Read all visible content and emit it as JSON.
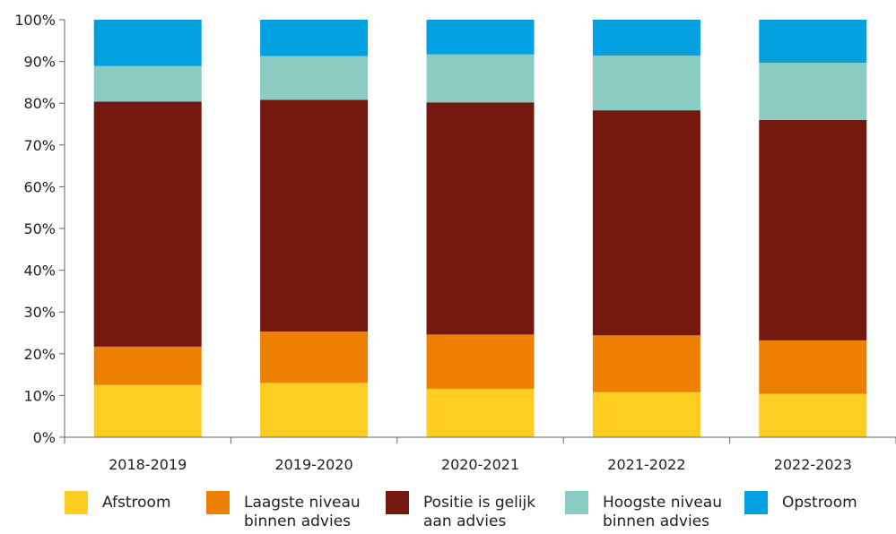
{
  "chart_data": {
    "type": "bar",
    "stacked": true,
    "categories": [
      "2018-2019",
      "2019-2020",
      "2020-2021",
      "2021-2022",
      "2022-2023"
    ],
    "series": [
      {
        "name": "Afstroom",
        "color": "#FDCD21",
        "values": [
          12.5,
          13.0,
          11.6,
          10.8,
          10.4
        ]
      },
      {
        "name": "Laagste niveau binnen advies",
        "color": "#EE8001",
        "values": [
          9.2,
          12.3,
          13.0,
          13.6,
          12.8
        ]
      },
      {
        "name": "Positie is gelijk aan advies",
        "color": "#741810",
        "values": [
          58.7,
          55.5,
          55.6,
          53.9,
          52.8
        ]
      },
      {
        "name": "Hoogste niveau binnen advies",
        "color": "#8ACBC2",
        "values": [
          8.5,
          10.5,
          11.5,
          13.1,
          13.7
        ]
      },
      {
        "name": "Opstroom",
        "color": "#01A0E0",
        "values": [
          11.1,
          8.7,
          8.3,
          8.6,
          10.3
        ]
      }
    ],
    "yticks": [
      "0%",
      "10%",
      "20%",
      "30%",
      "40%",
      "50%",
      "60%",
      "70%",
      "80%",
      "90%",
      "100%"
    ],
    "ylim": [
      0,
      100
    ],
    "title": "",
    "xlabel": "",
    "ylabel": "",
    "grid": false,
    "legend_position": "bottom"
  },
  "legend": [
    {
      "label": "Afstroom"
    },
    {
      "label": "Laagste niveau\nbinnen advies"
    },
    {
      "label": "Positie is gelijk\naan advies"
    },
    {
      "label": "Hoogste niveau\nbinnen advies"
    },
    {
      "label": "Opstroom"
    }
  ]
}
